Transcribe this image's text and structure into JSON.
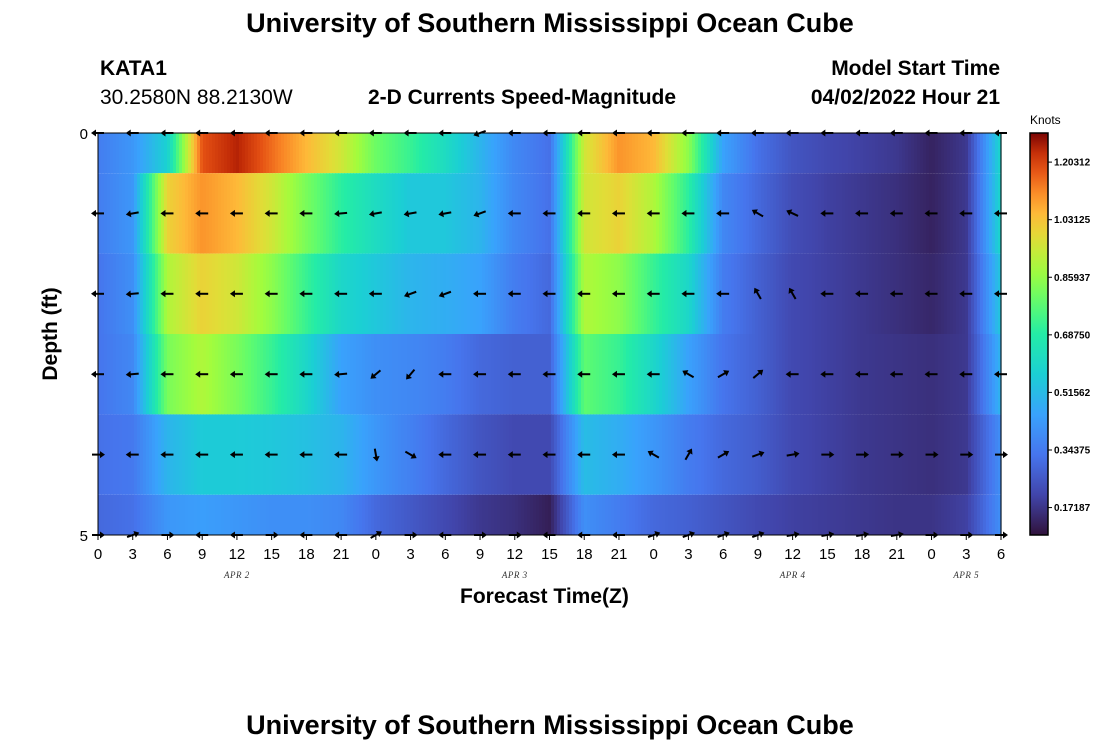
{
  "header": {
    "title": "University of Southern Mississippi Ocean Cube",
    "station": "KATA1",
    "coords": "30.2580N  88.2130W",
    "subtitle": "2-D Currents Speed-Magnitude",
    "model_label": "Model Start Time",
    "model_time": "04/02/2022 Hour 21",
    "footer_title": "University of Southern Mississippi Ocean Cube"
  },
  "chart_data": {
    "type": "heatmap",
    "title": "2-D Currents Speed-Magnitude",
    "xlabel": "Forecast Time(Z)",
    "ylabel": "Depth (ft)",
    "x_tick_labels": [
      "0",
      "3",
      "6",
      "9",
      "12",
      "15",
      "18",
      "21",
      "0",
      "3",
      "6",
      "9",
      "12",
      "15",
      "18",
      "21",
      "0",
      "3",
      "6",
      "9",
      "12",
      "15",
      "18",
      "21",
      "0",
      "3",
      "6"
    ],
    "y_tick_labels": [
      "0",
      "5"
    ],
    "ylim": [
      0,
      5
    ],
    "date_labels": [
      {
        "text": "APR 2",
        "hour": 12
      },
      {
        "text": "APR 3",
        "hour": 36
      },
      {
        "text": "APR 4",
        "hour": 60
      },
      {
        "text": "APR 5",
        "hour": 75
      }
    ],
    "colorbar": {
      "unit": "Knots",
      "min": 0.09,
      "max": 1.29,
      "tick_labels": [
        "1.20312",
        "1.03125",
        "0.85937",
        "0.68750",
        "0.51562",
        "0.34375",
        "0.17187"
      ],
      "tick_values": [
        1.20312,
        1.03125,
        0.85937,
        0.6875,
        0.51562,
        0.34375,
        0.17187
      ]
    },
    "hours": [
      0,
      3,
      6,
      9,
      12,
      15,
      18,
      21,
      24,
      27,
      30,
      33,
      36,
      39,
      42,
      45,
      48,
      51,
      54,
      57,
      60,
      63,
      66,
      69,
      72,
      75,
      78
    ],
    "depth_rows": [
      {
        "depth": 0,
        "speed": [
          0.35,
          0.42,
          0.58,
          1.18,
          1.25,
          1.15,
          1.05,
          0.95,
          0.8,
          0.72,
          0.62,
          0.5,
          0.38,
          0.32,
          0.95,
          1.1,
          1.05,
          0.85,
          0.45,
          0.32,
          0.25,
          0.22,
          0.2,
          0.18,
          0.13,
          0.18,
          0.6
        ]
      },
      {
        "depth": 1,
        "speed": [
          0.35,
          0.42,
          1.0,
          1.1,
          1.05,
          0.95,
          0.82,
          0.7,
          0.62,
          0.55,
          0.55,
          0.5,
          0.38,
          0.32,
          0.95,
          1.0,
          0.9,
          0.7,
          0.38,
          0.3,
          0.23,
          0.2,
          0.18,
          0.16,
          0.13,
          0.18,
          0.6
        ]
      },
      {
        "depth": 2,
        "speed": [
          0.33,
          0.4,
          0.9,
          1.0,
          0.95,
          0.85,
          0.72,
          0.6,
          0.55,
          0.5,
          0.48,
          0.45,
          0.35,
          0.3,
          0.9,
          0.85,
          0.72,
          0.6,
          0.35,
          0.28,
          0.22,
          0.2,
          0.18,
          0.16,
          0.14,
          0.18,
          0.55
        ]
      },
      {
        "depth": 3,
        "speed": [
          0.33,
          0.38,
          0.82,
          0.9,
          0.82,
          0.72,
          0.6,
          0.45,
          0.4,
          0.38,
          0.35,
          0.3,
          0.28,
          0.28,
          0.78,
          0.72,
          0.6,
          0.45,
          0.33,
          0.28,
          0.22,
          0.2,
          0.18,
          0.17,
          0.16,
          0.18,
          0.5
        ]
      },
      {
        "depth": 4,
        "speed": [
          0.32,
          0.34,
          0.5,
          0.56,
          0.56,
          0.55,
          0.53,
          0.5,
          0.42,
          0.36,
          0.3,
          0.25,
          0.22,
          0.22,
          0.52,
          0.48,
          0.42,
          0.35,
          0.3,
          0.27,
          0.22,
          0.2,
          0.18,
          0.17,
          0.16,
          0.18,
          0.4
        ]
      },
      {
        "depth": 5,
        "speed": [
          0.3,
          0.32,
          0.42,
          0.44,
          0.42,
          0.4,
          0.4,
          0.38,
          0.3,
          0.26,
          0.22,
          0.18,
          0.16,
          0.12,
          0.4,
          0.35,
          0.3,
          0.28,
          0.25,
          0.22,
          0.2,
          0.19,
          0.18,
          0.17,
          0.17,
          0.2,
          0.4
        ]
      }
    ],
    "vector_rows": [
      {
        "depth": 0,
        "dir_deg": [
          180,
          180,
          180,
          180,
          180,
          180,
          180,
          180,
          180,
          180,
          180,
          200,
          180,
          180,
          180,
          180,
          180,
          180,
          180,
          180,
          180,
          180,
          180,
          180,
          180,
          180,
          180
        ]
      },
      {
        "depth": 1,
        "dir_deg": [
          180,
          190,
          180,
          180,
          180,
          180,
          180,
          185,
          190,
          190,
          190,
          200,
          180,
          180,
          180,
          180,
          180,
          180,
          180,
          150,
          155,
          180,
          180,
          180,
          180,
          180,
          180
        ]
      },
      {
        "depth": 2,
        "dir_deg": [
          180,
          185,
          180,
          180,
          180,
          180,
          180,
          180,
          180,
          200,
          200,
          180,
          180,
          180,
          180,
          180,
          180,
          180,
          180,
          120,
          120,
          180,
          180,
          180,
          180,
          180,
          180
        ]
      },
      {
        "depth": 3,
        "dir_deg": [
          180,
          185,
          180,
          180,
          180,
          180,
          180,
          185,
          220,
          230,
          180,
          180,
          180,
          180,
          180,
          180,
          180,
          150,
          30,
          40,
          180,
          180,
          180,
          180,
          180,
          180,
          180
        ]
      },
      {
        "depth": 4,
        "dir_deg": [
          0,
          180,
          180,
          180,
          180,
          180,
          180,
          180,
          280,
          330,
          180,
          180,
          180,
          180,
          180,
          180,
          150,
          60,
          30,
          20,
          10,
          0,
          0,
          0,
          0,
          0,
          0
        ]
      },
      {
        "depth": 5,
        "dir_deg": [
          0,
          20,
          0,
          180,
          180,
          0,
          180,
          180,
          30,
          0,
          180,
          0,
          0,
          180,
          180,
          180,
          20,
          20,
          20,
          20,
          10,
          10,
          10,
          10,
          0,
          0,
          0
        ]
      }
    ]
  }
}
